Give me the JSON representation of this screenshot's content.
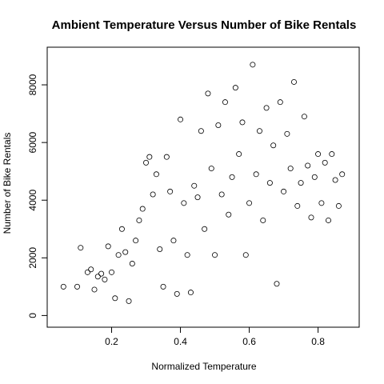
{
  "chart_data": {
    "type": "scatter",
    "title": "Ambient Temperature Versus Number of Bike Rentals",
    "xlabel": "Normalized Temperature",
    "ylabel": "Number of Bike Rentals",
    "xlim": [
      0.05,
      0.88
    ],
    "ylim": [
      -100,
      9000
    ],
    "xticks": [
      0.2,
      0.4,
      0.6,
      0.8
    ],
    "xtick_labels": [
      "0.2",
      "0.4",
      "0.6",
      "0.8"
    ],
    "yticks": [
      0,
      2000,
      4000,
      6000,
      8000
    ],
    "ytick_labels": [
      "0",
      "2000",
      "4000",
      "6000",
      "8000"
    ],
    "grid": false,
    "marker": "open-circle",
    "series": [
      {
        "points": [
          [
            0.06,
            1000
          ],
          [
            0.1,
            1000
          ],
          [
            0.11,
            2350
          ],
          [
            0.13,
            1500
          ],
          [
            0.14,
            1600
          ],
          [
            0.15,
            900
          ],
          [
            0.16,
            1350
          ],
          [
            0.17,
            1450
          ],
          [
            0.18,
            1250
          ],
          [
            0.19,
            2400
          ],
          [
            0.2,
            1500
          ],
          [
            0.21,
            600
          ],
          [
            0.22,
            2100
          ],
          [
            0.23,
            3000
          ],
          [
            0.24,
            2200
          ],
          [
            0.25,
            500
          ],
          [
            0.26,
            1800
          ],
          [
            0.27,
            2600
          ],
          [
            0.28,
            3300
          ],
          [
            0.29,
            3700
          ],
          [
            0.3,
            5300
          ],
          [
            0.31,
            5500
          ],
          [
            0.32,
            4200
          ],
          [
            0.33,
            4900
          ],
          [
            0.34,
            2300
          ],
          [
            0.35,
            1000
          ],
          [
            0.36,
            5500
          ],
          [
            0.37,
            4300
          ],
          [
            0.38,
            2600
          ],
          [
            0.39,
            750
          ],
          [
            0.4,
            6800
          ],
          [
            0.41,
            3900
          ],
          [
            0.42,
            2100
          ],
          [
            0.43,
            800
          ],
          [
            0.44,
            4500
          ],
          [
            0.45,
            4100
          ],
          [
            0.46,
            6400
          ],
          [
            0.47,
            3000
          ],
          [
            0.48,
            7700
          ],
          [
            0.49,
            5100
          ],
          [
            0.5,
            2100
          ],
          [
            0.51,
            6600
          ],
          [
            0.52,
            4200
          ],
          [
            0.53,
            7400
          ],
          [
            0.54,
            3500
          ],
          [
            0.55,
            4800
          ],
          [
            0.56,
            7900
          ],
          [
            0.57,
            5600
          ],
          [
            0.58,
            6700
          ],
          [
            0.59,
            2100
          ],
          [
            0.6,
            3900
          ],
          [
            0.61,
            8700
          ],
          [
            0.62,
            4900
          ],
          [
            0.63,
            6400
          ],
          [
            0.64,
            3300
          ],
          [
            0.65,
            7200
          ],
          [
            0.66,
            4600
          ],
          [
            0.67,
            5900
          ],
          [
            0.68,
            1100
          ],
          [
            0.69,
            7400
          ],
          [
            0.7,
            4300
          ],
          [
            0.71,
            6300
          ],
          [
            0.72,
            5100
          ],
          [
            0.73,
            8100
          ],
          [
            0.74,
            3800
          ],
          [
            0.75,
            4600
          ],
          [
            0.76,
            6900
          ],
          [
            0.77,
            5200
          ],
          [
            0.78,
            3400
          ],
          [
            0.79,
            4800
          ],
          [
            0.8,
            5600
          ],
          [
            0.81,
            3900
          ],
          [
            0.82,
            5300
          ],
          [
            0.83,
            3300
          ],
          [
            0.84,
            5600
          ],
          [
            0.85,
            4700
          ],
          [
            0.86,
            3800
          ],
          [
            0.87,
            4900
          ]
        ]
      }
    ]
  }
}
